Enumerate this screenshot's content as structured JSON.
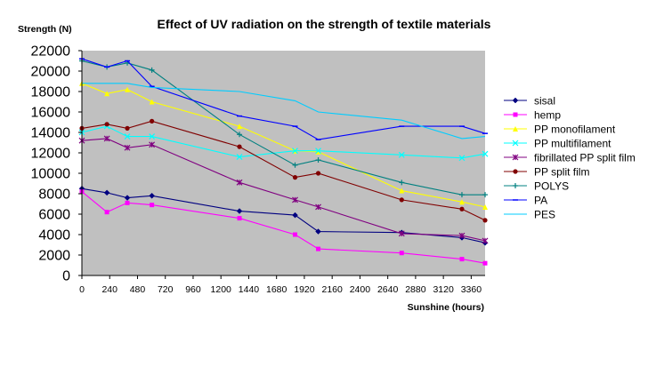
{
  "chart_data": {
    "type": "line",
    "title": "Effect of UV radiation on the strength of textile materials",
    "ylabel": "Strength (N)",
    "xlabel": "Sunshine (hours)",
    "xlim": [
      0,
      3480
    ],
    "ylim": [
      0,
      22000
    ],
    "xticks": [
      0,
      240,
      480,
      720,
      960,
      1200,
      1440,
      1680,
      1920,
      2160,
      2400,
      2640,
      2880,
      3120,
      3360
    ],
    "yticks": [
      0,
      2000,
      4000,
      6000,
      8000,
      10000,
      12000,
      14000,
      16000,
      18000,
      20000,
      22000
    ],
    "grid": false,
    "legend_position": "right",
    "plot_background": "#c0c0c0",
    "series": [
      {
        "name": "sisal",
        "color": "#000080",
        "marker": "diamond",
        "x": [
          0,
          216,
          392,
          604,
          1360,
          1840,
          2040,
          2760,
          3280,
          3480
        ],
        "y": [
          8500,
          8100,
          7600,
          7800,
          6300,
          5900,
          4300,
          4200,
          3700,
          3200
        ]
      },
      {
        "name": "hemp",
        "color": "#ff00ff",
        "marker": "square",
        "x": [
          0,
          216,
          392,
          604,
          1360,
          1840,
          2040,
          2760,
          3280,
          3480
        ],
        "y": [
          8200,
          6200,
          7100,
          6900,
          5600,
          4000,
          2600,
          2200,
          1600,
          1200
        ]
      },
      {
        "name": "PP monofilament",
        "color": "#ffff00",
        "marker": "triangle",
        "x": [
          0,
          216,
          392,
          604,
          1360,
          1840,
          2040,
          2760,
          3280,
          3480
        ],
        "y": [
          18800,
          17800,
          18200,
          17000,
          14600,
          12200,
          12100,
          8300,
          7200,
          6700
        ]
      },
      {
        "name": "PP multifilament",
        "color": "#00ffff",
        "marker": "x",
        "x": [
          0,
          216,
          392,
          604,
          1360,
          1840,
          2040,
          2760,
          3280,
          3480
        ],
        "y": [
          14000,
          14600,
          13600,
          13600,
          11600,
          12200,
          12200,
          11800,
          11500,
          11900
        ]
      },
      {
        "name": "fibrillated PP split film",
        "color": "#800080",
        "marker": "asterisk",
        "x": [
          0,
          216,
          392,
          604,
          1360,
          1840,
          2040,
          2760,
          3280,
          3480
        ],
        "y": [
          13200,
          13400,
          12500,
          12800,
          9100,
          7400,
          6700,
          4100,
          3900,
          3400
        ]
      },
      {
        "name": "PP split film",
        "color": "#800000",
        "marker": "circle",
        "x": [
          0,
          216,
          392,
          604,
          1360,
          1840,
          2040,
          2760,
          3280,
          3480
        ],
        "y": [
          14400,
          14800,
          14400,
          15100,
          12600,
          9600,
          10000,
          7400,
          6500,
          5400
        ]
      },
      {
        "name": "POLYS",
        "color": "#008080",
        "marker": "plus",
        "x": [
          0,
          216,
          392,
          604,
          1360,
          1840,
          2040,
          2760,
          3280,
          3480
        ],
        "y": [
          21000,
          20400,
          20800,
          20100,
          13800,
          10800,
          11300,
          9100,
          7900,
          7900
        ]
      },
      {
        "name": "PA",
        "color": "#0000ff",
        "marker": "dash",
        "x": [
          0,
          216,
          392,
          604,
          1360,
          1840,
          2040,
          2760,
          3280,
          3480
        ],
        "y": [
          21200,
          20400,
          21000,
          18500,
          15600,
          14600,
          13300,
          14600,
          14600,
          13900
        ]
      },
      {
        "name": "PES",
        "color": "#00ccff",
        "marker": "none",
        "x": [
          0,
          216,
          392,
          604,
          1360,
          1840,
          2040,
          2760,
          3280,
          3480
        ],
        "y": [
          18800,
          18800,
          18800,
          18400,
          18000,
          17100,
          16000,
          15200,
          13400,
          13600
        ]
      }
    ]
  }
}
